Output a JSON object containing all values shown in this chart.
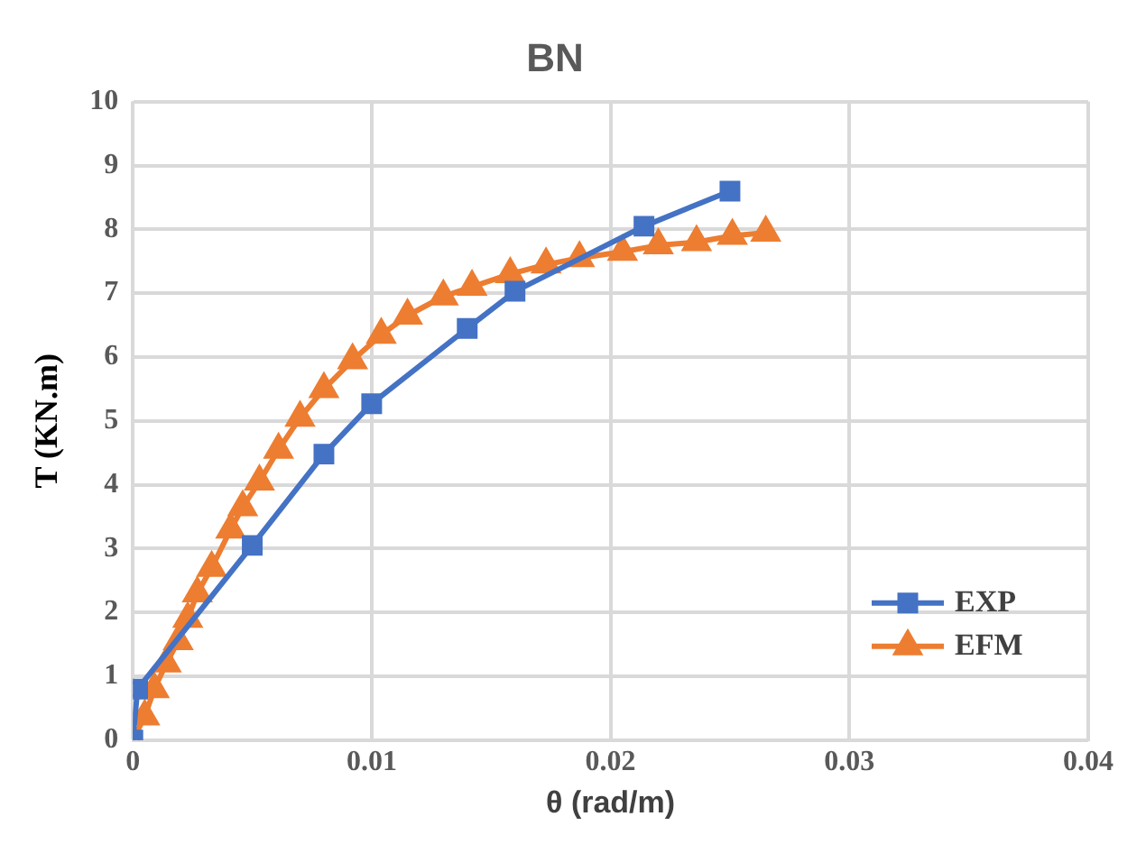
{
  "chart_data": {
    "type": "line",
    "title": "BN",
    "xlabel": "θ (rad/m)",
    "ylabel": "T (KN.m)",
    "xlim": [
      0,
      0.04
    ],
    "xticks": [
      0,
      0.01,
      0.02,
      0.03,
      0.04
    ],
    "ylim": [
      0,
      10
    ],
    "yticks": [
      0,
      1,
      2,
      3,
      4,
      5,
      6,
      7,
      8,
      9,
      10
    ],
    "grid": true,
    "legend": "bottom right",
    "line_style": "solid",
    "series": [
      {
        "name": "EXP",
        "color": "#4472c4",
        "marker": "square",
        "x": [
          0,
          0.0002,
          0.005,
          0.008,
          0.01,
          0.014,
          0.016,
          0.0214,
          0.025
        ],
        "values": [
          0,
          0.8,
          3.05,
          4.48,
          5.27,
          6.45,
          7.03,
          8.05,
          8.6
        ]
      },
      {
        "name": "EFM",
        "color": "#ed7d31",
        "marker": "triangle",
        "x": [
          0,
          0.0005,
          0.0009,
          0.0014,
          0.0019,
          0.0023,
          0.0027,
          0.0033,
          0.0041,
          0.0046,
          0.0053,
          0.0061,
          0.007,
          0.008,
          0.0092,
          0.0104,
          0.0115,
          0.013,
          0.0142,
          0.0158,
          0.0173,
          0.0187,
          0.0205,
          0.022,
          0.0236,
          0.0251,
          0.0265
        ],
        "values": [
          0,
          0.37,
          0.8,
          1.2,
          1.55,
          1.9,
          2.3,
          2.7,
          3.3,
          3.65,
          4.05,
          4.55,
          5.05,
          5.5,
          5.95,
          6.35,
          6.65,
          6.95,
          7.1,
          7.3,
          7.45,
          7.55,
          7.65,
          7.75,
          7.8,
          7.9,
          7.95
        ]
      }
    ]
  }
}
